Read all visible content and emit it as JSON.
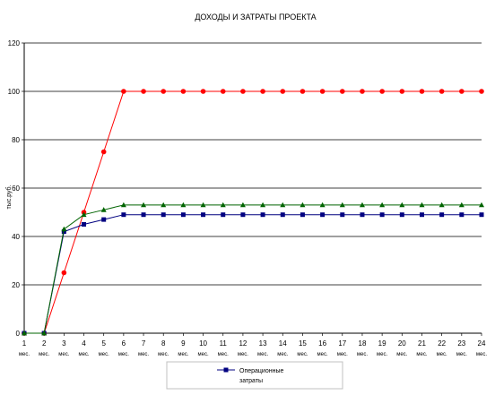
{
  "chart_data": {
    "type": "line",
    "title": "ДОХОДЫ И ЗАТРАТЫ ПРОЕКТА",
    "ylabel": "тыс.руб.",
    "xlabel": "",
    "ylim": [
      0,
      120
    ],
    "yticks": [
      0,
      20,
      40,
      60,
      80,
      100,
      120
    ],
    "grid": true,
    "legend_position": "bottom",
    "categories": [
      "1",
      "2",
      "3",
      "4",
      "5",
      "6",
      "7",
      "8",
      "9",
      "10",
      "11",
      "12",
      "13",
      "14",
      "15",
      "16",
      "17",
      "18",
      "19",
      "20",
      "21",
      "22",
      "23",
      "24"
    ],
    "category_sublabel": "мес.",
    "series": [
      {
        "name": "",
        "color": "#ff0000",
        "marker": "circle",
        "values": [
          0,
          0,
          25,
          50,
          75,
          100,
          100,
          100,
          100,
          100,
          100,
          100,
          100,
          100,
          100,
          100,
          100,
          100,
          100,
          100,
          100,
          100,
          100,
          100
        ]
      },
      {
        "name": "Операционные затраты",
        "color": "#000080",
        "marker": "square",
        "values": [
          0,
          0,
          42,
          45,
          47,
          49,
          49,
          49,
          49,
          49,
          49,
          49,
          49,
          49,
          49,
          49,
          49,
          49,
          49,
          49,
          49,
          49,
          49,
          49
        ]
      },
      {
        "name": "",
        "color": "#006400",
        "marker": "triangle",
        "values": [
          0,
          0,
          43,
          49,
          51,
          53,
          53,
          53,
          53,
          53,
          53,
          53,
          53,
          53,
          53,
          53,
          53,
          53,
          53,
          53,
          53,
          53,
          53,
          53
        ]
      }
    ],
    "legend": {
      "line1": "Операционные",
      "line2": "затраты"
    }
  }
}
